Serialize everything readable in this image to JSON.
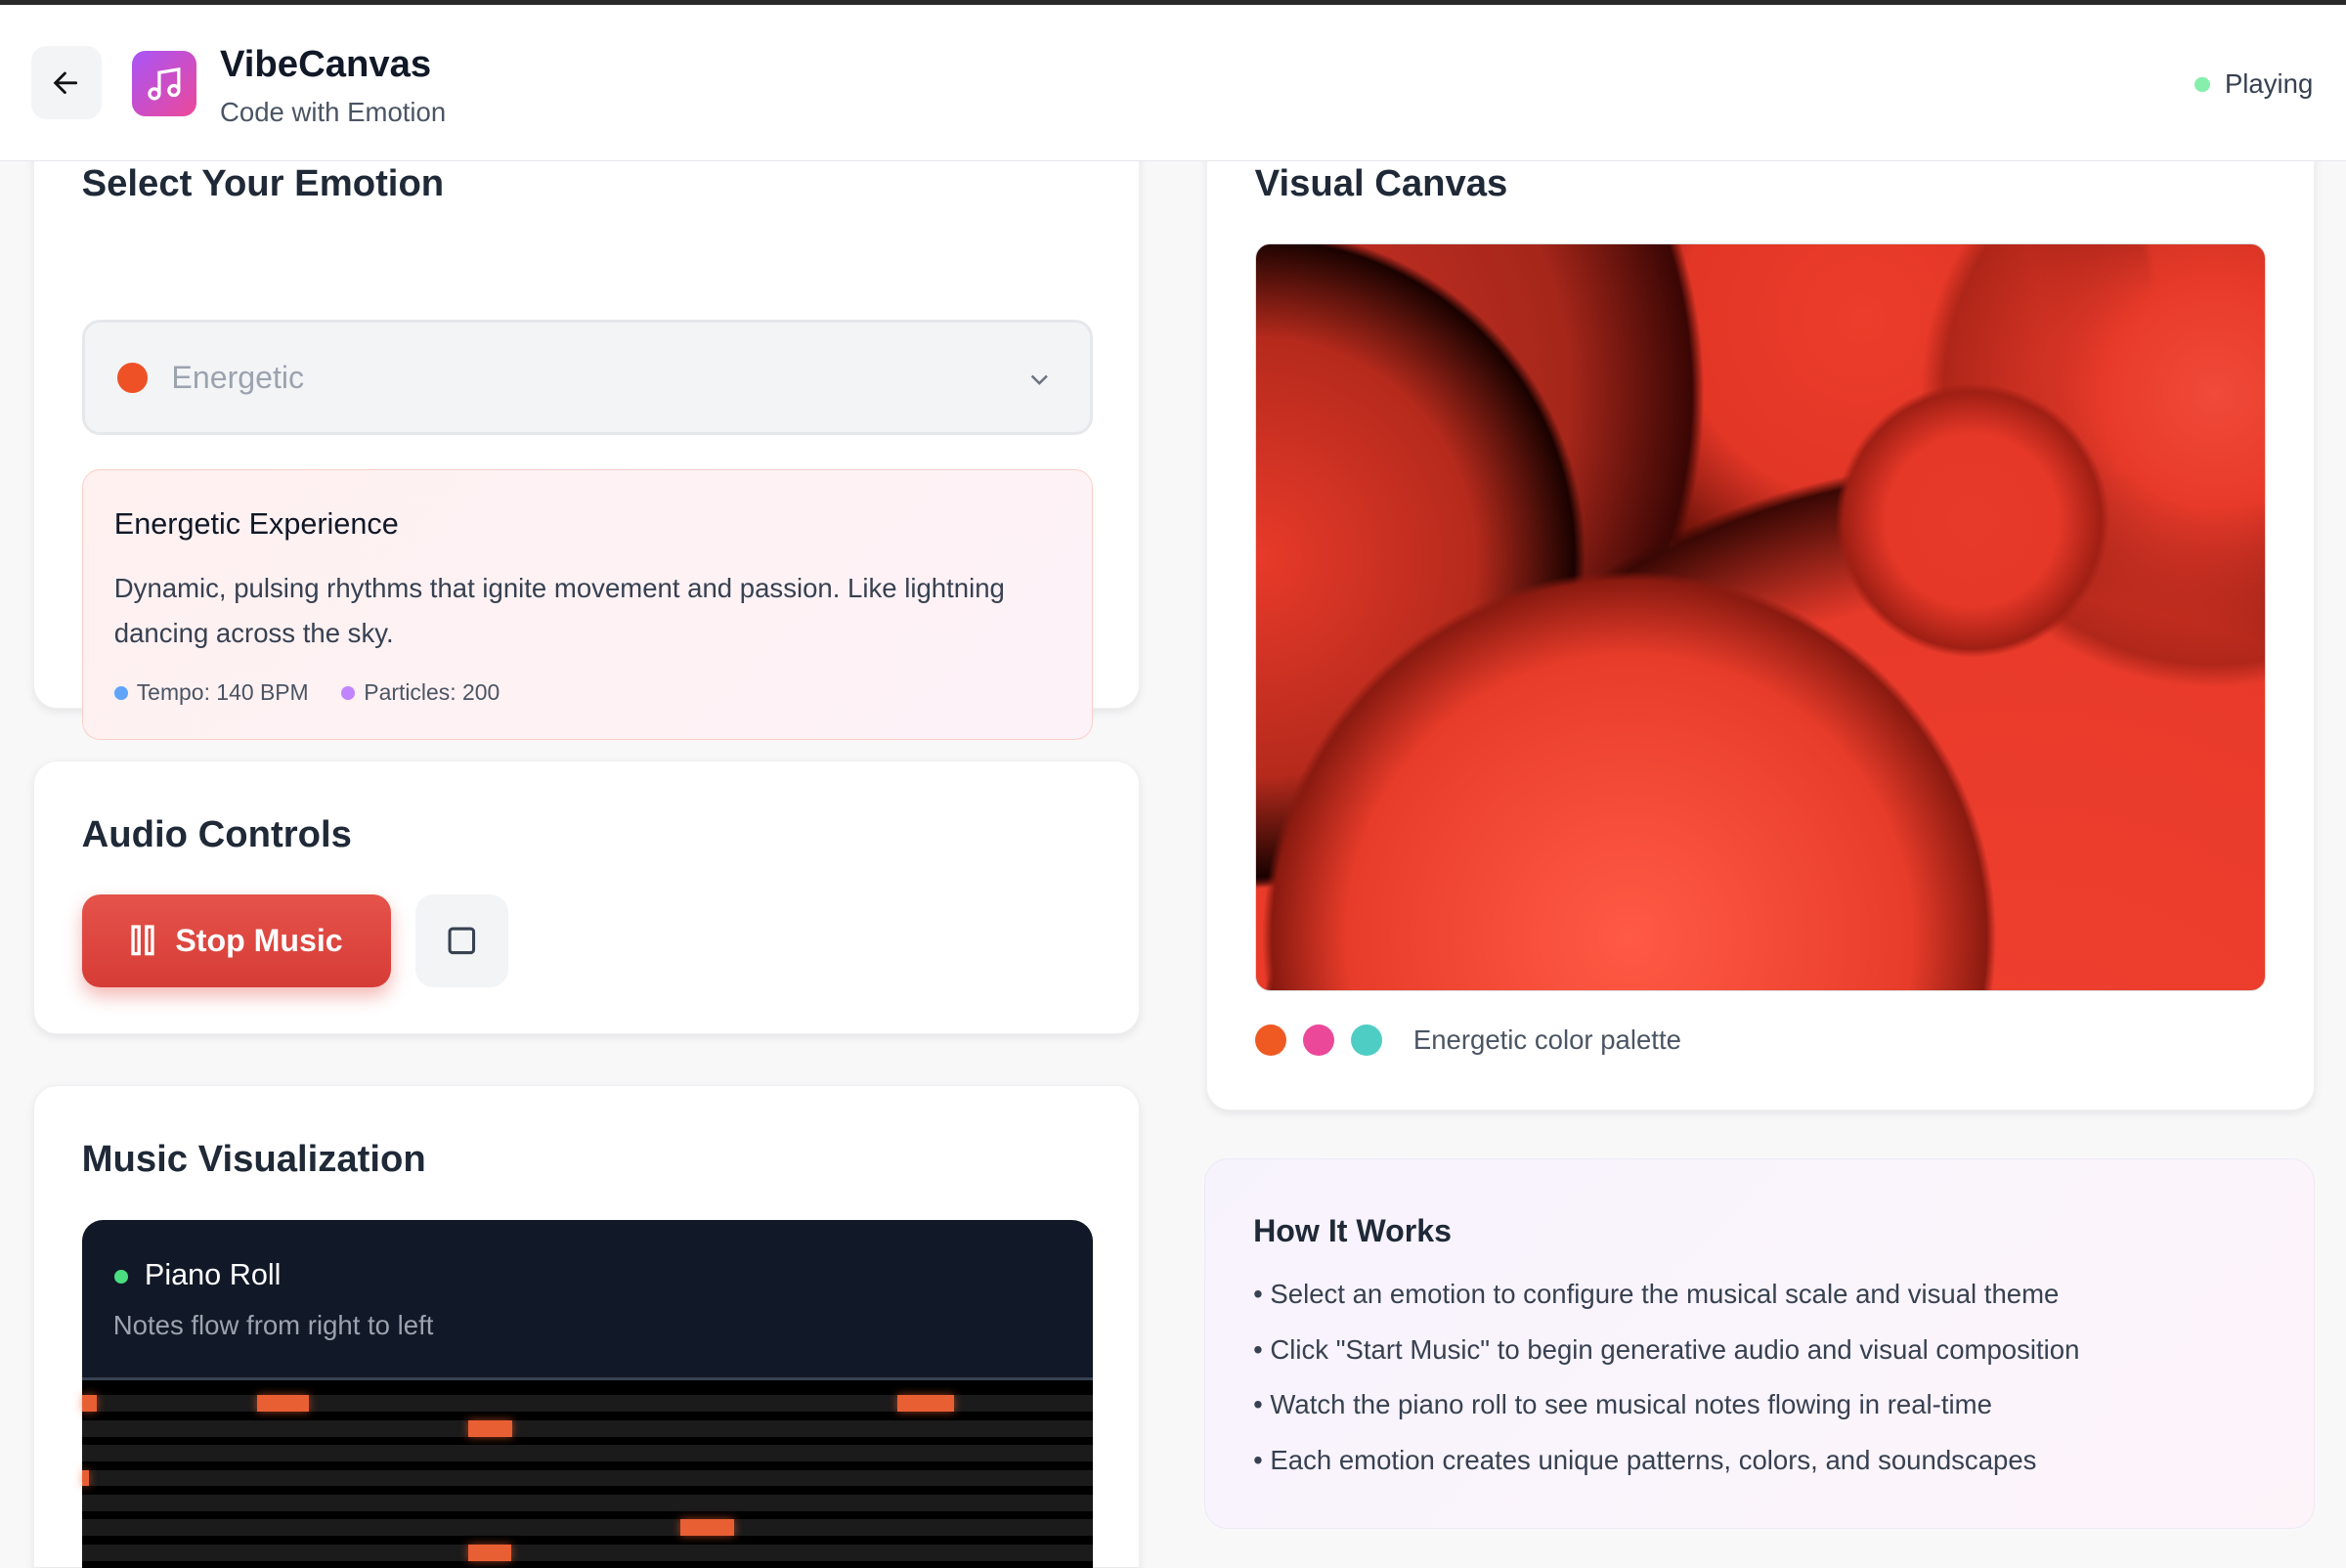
{
  "header": {
    "back_icon": "arrow-left-icon",
    "logo_icon": "music-note-icon",
    "title": "VibeCanvas",
    "subtitle": "Code with Emotion",
    "status": "Playing",
    "status_color": "#86efac"
  },
  "emotion": {
    "heading": "Select Your Emotion",
    "selected": "Energetic",
    "selected_color": "#ef5127",
    "info_title": "Energetic Experience",
    "info_text": "Dynamic, pulsing rhythms that ignite movement and passion. Like lightning dancing across the sky.",
    "tempo": "Tempo: 140 BPM",
    "particles": "Particles: 200",
    "tempo_color": "#60a5fa",
    "particles_color": "#c084fc"
  },
  "audio": {
    "heading": "Audio Controls",
    "stop_label": "Stop Music",
    "stop_icon": "pause-icon",
    "square_icon": "stop-square-icon"
  },
  "music": {
    "heading": "Music Visualization",
    "roll_title": "Piano Roll",
    "roll_subtitle": "Notes flow from right to left",
    "note_color": "#e85f33"
  },
  "canvas": {
    "heading": "Visual Canvas",
    "palette_label": "Energetic color palette",
    "palette": [
      "#ef5a23",
      "#ec4899",
      "#4ecdc4"
    ]
  },
  "how": {
    "heading": "How It Works",
    "items": [
      "• Select an emotion to configure the musical scale and visual theme",
      "• Click \"Start Music\" to begin generative audio and visual composition",
      "• Watch the piano roll to see musical notes flowing in real-time",
      "• Each emotion creates unique patterns, colors, and soundscapes"
    ]
  }
}
